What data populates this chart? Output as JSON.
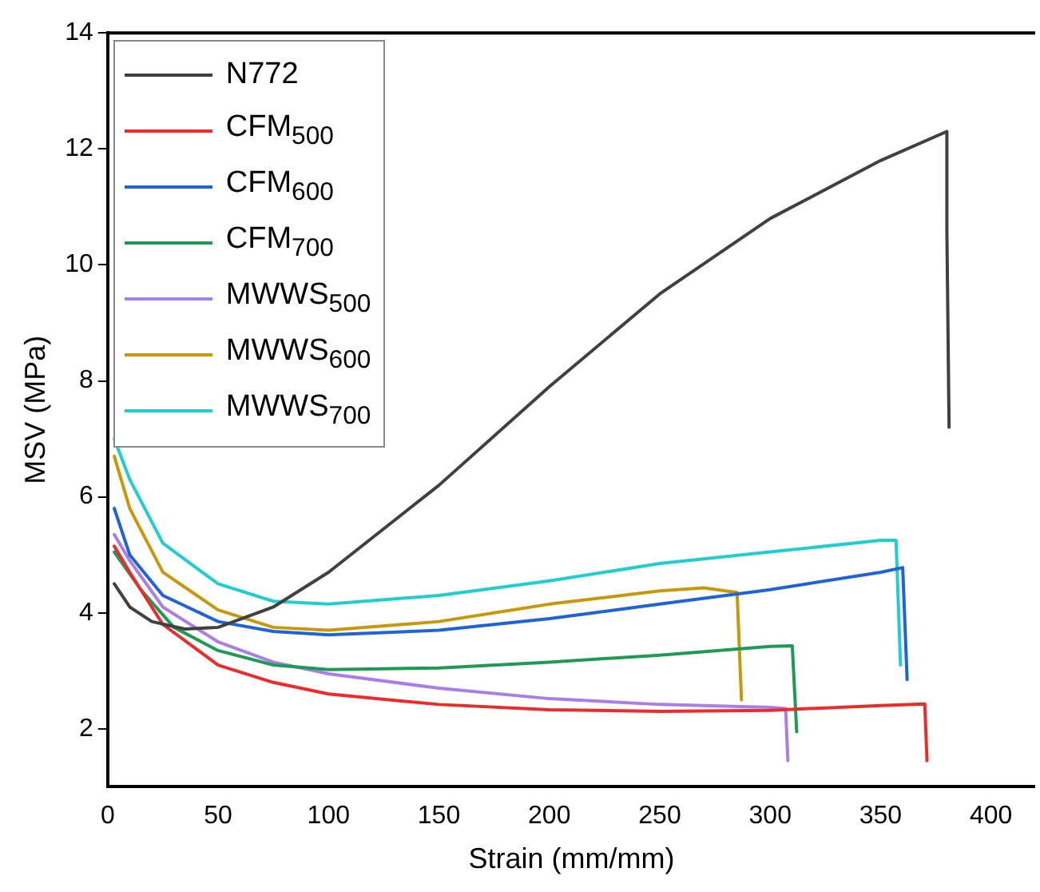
{
  "chart_data": {
    "type": "line",
    "xlabel": "Strain (mm/mm)",
    "ylabel": "MSV (MPa)",
    "xlim": [
      0,
      420
    ],
    "xticks": [
      0,
      50,
      100,
      150,
      200,
      250,
      300,
      350,
      400
    ],
    "ylim": [
      1,
      14
    ],
    "yticks": [
      2,
      4,
      6,
      8,
      10,
      12,
      14
    ],
    "grid": false,
    "legend": "top left",
    "marker": "none",
    "line_style": "solid",
    "series": [
      {
        "name": "N772",
        "color": "#404040",
        "x": [
          3,
          10,
          20,
          35,
          50,
          75,
          100,
          150,
          200,
          250,
          300,
          350,
          380,
          380,
          381
        ],
        "values": [
          4.5,
          4.1,
          3.85,
          3.72,
          3.75,
          4.1,
          4.7,
          6.2,
          7.9,
          9.5,
          10.8,
          11.8,
          12.3,
          10.6,
          7.2
        ]
      },
      {
        "name": "CFM$_{500}$",
        "color": "#ee2a2a",
        "x": [
          3,
          10,
          25,
          50,
          75,
          100,
          150,
          200,
          250,
          300,
          350,
          370,
          371
        ],
        "values": [
          5.15,
          4.7,
          3.8,
          3.1,
          2.8,
          2.6,
          2.42,
          2.33,
          2.3,
          2.32,
          2.4,
          2.43,
          1.45
        ]
      },
      {
        "name": "CFM$_{600}$",
        "color": "#1f63d8",
        "x": [
          3,
          10,
          25,
          50,
          75,
          100,
          150,
          200,
          250,
          300,
          350,
          360,
          362
        ],
        "values": [
          5.8,
          5.0,
          4.3,
          3.85,
          3.68,
          3.62,
          3.7,
          3.9,
          4.15,
          4.4,
          4.7,
          4.78,
          2.85
        ]
      },
      {
        "name": "CFM$_{700}$",
        "color": "#1e9a55",
        "x": [
          3,
          15,
          30,
          50,
          75,
          100,
          150,
          200,
          250,
          300,
          310,
          312
        ],
        "values": [
          5.05,
          4.4,
          3.75,
          3.35,
          3.1,
          3.02,
          3.05,
          3.15,
          3.27,
          3.42,
          3.43,
          1.95
        ]
      },
      {
        "name": "MWWS$_{500}$",
        "color": "#a97ee8",
        "x": [
          3,
          10,
          25,
          50,
          75,
          100,
          150,
          200,
          250,
          300,
          307,
          308
        ],
        "values": [
          5.35,
          4.9,
          4.1,
          3.5,
          3.15,
          2.95,
          2.7,
          2.52,
          2.42,
          2.37,
          2.35,
          1.45
        ]
      },
      {
        "name": "MWWS$_{600}$",
        "color": "#c9980a",
        "x": [
          3,
          10,
          25,
          50,
          75,
          100,
          150,
          200,
          250,
          270,
          285,
          287
        ],
        "values": [
          6.7,
          5.8,
          4.7,
          4.05,
          3.75,
          3.7,
          3.85,
          4.15,
          4.38,
          4.43,
          4.35,
          2.5
        ]
      },
      {
        "name": "MWWS$_{700}$",
        "color": "#1fcfcf",
        "x": [
          3,
          10,
          25,
          50,
          75,
          100,
          150,
          200,
          250,
          300,
          350,
          357,
          359
        ],
        "values": [
          7.0,
          6.3,
          5.2,
          4.5,
          4.2,
          4.15,
          4.3,
          4.55,
          4.85,
          5.05,
          5.25,
          5.25,
          3.1
        ]
      }
    ]
  }
}
